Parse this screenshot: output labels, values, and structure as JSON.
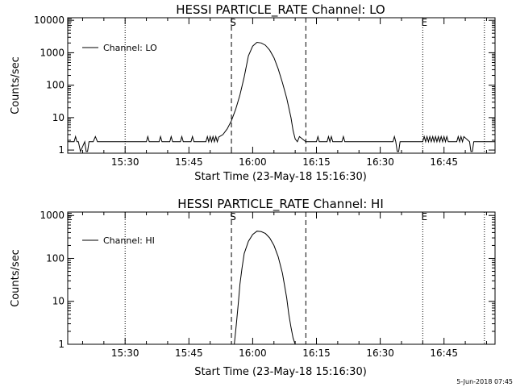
{
  "footer": {
    "timestamp": "5-Jun-2018 07:45"
  },
  "chart_data": [
    {
      "type": "line",
      "title": "HESSI PARTICLE_RATE Channel: LO",
      "xlabel": "Start Time (23-May-18 15:16:30)",
      "ylabel": "Counts/sec",
      "yscale": "log",
      "ylim": [
        0.8,
        12000
      ],
      "xlim": [
        "15:16:30",
        "16:57:00"
      ],
      "x_ticks": [
        "15:30",
        "15:45",
        "16:00",
        "16:15",
        "16:30",
        "16:45"
      ],
      "y_ticks": [
        "1",
        "10",
        "100",
        "1000",
        "10000"
      ],
      "grid": false,
      "legend": {
        "position": "top-left",
        "entries": [
          "Channel: LO"
        ]
      },
      "markers": [
        {
          "label": "E",
          "time": "15:16:30",
          "style": "dotted"
        },
        {
          "label": "",
          "time": "15:30:00",
          "style": "dotted"
        },
        {
          "label": "S",
          "time": "15:55:00",
          "style": "dashed"
        },
        {
          "label": "",
          "time": "16:12:30",
          "style": "dashed"
        },
        {
          "label": "E",
          "time": "16:40:00",
          "style": "dotted"
        },
        {
          "label": "",
          "time": "16:54:30",
          "style": "dotted"
        }
      ],
      "series": [
        {
          "name": "Channel: LO",
          "x": [
            "15:16:30",
            "15:18:00",
            "15:18:20",
            "15:18:40",
            "15:19:00",
            "15:19:30",
            "15:20:30",
            "15:20:50",
            "15:21:10",
            "15:21:30",
            "15:22:30",
            "15:23:00",
            "15:23:30",
            "15:24:00",
            "15:30:00",
            "15:35:00",
            "15:35:20",
            "15:35:40",
            "15:38:00",
            "15:38:20",
            "15:38:40",
            "15:40:30",
            "15:40:50",
            "15:41:10",
            "15:43:00",
            "15:43:20",
            "15:43:40",
            "15:45:30",
            "15:45:50",
            "15:46:10",
            "15:49:00",
            "15:49:20",
            "15:49:40",
            "15:50:00",
            "15:50:20",
            "15:50:40",
            "15:51:00",
            "15:51:20",
            "15:51:40",
            "15:52:00",
            "15:53:00",
            "15:54:00",
            "15:55:00",
            "15:56:00",
            "15:57:00",
            "15:58:00",
            "15:59:00",
            "16:00:00",
            "16:01:00",
            "16:02:00",
            "16:03:00",
            "16:04:00",
            "16:05:00",
            "16:06:00",
            "16:07:00",
            "16:08:00",
            "16:09:00",
            "16:09:30",
            "16:10:00",
            "16:10:30",
            "16:11:00",
            "16:12:30",
            "16:15:00",
            "16:15:20",
            "16:15:40",
            "16:17:30",
            "16:17:50",
            "16:18:10",
            "16:18:30",
            "16:18:50",
            "16:19:10",
            "16:21:00",
            "16:21:20",
            "16:21:40",
            "16:33:00",
            "16:33:20",
            "16:33:40",
            "16:34:00",
            "16:34:20",
            "16:34:40",
            "16:35:00",
            "16:40:00",
            "16:40:20",
            "16:40:40",
            "16:41:00",
            "16:41:20",
            "16:41:40",
            "16:42:00",
            "16:42:20",
            "16:42:40",
            "16:43:00",
            "16:43:20",
            "16:43:40",
            "16:44:00",
            "16:44:20",
            "16:44:40",
            "16:45:00",
            "16:45:20",
            "16:45:40",
            "16:46:00",
            "16:47:00",
            "16:48:00",
            "16:48:20",
            "16:48:40",
            "16:49:00",
            "16:49:20",
            "16:49:40",
            "16:51:00",
            "16:51:20",
            "16:51:40",
            "16:52:00",
            "16:55:00",
            "16:57:00"
          ],
          "y": [
            1.8,
            1.8,
            2.6,
            1.8,
            1.8,
            0.9,
            1.8,
            0.9,
            0.9,
            1.8,
            1.8,
            2.6,
            1.8,
            1.8,
            1.8,
            1.8,
            2.6,
            1.8,
            1.8,
            2.6,
            1.8,
            1.8,
            2.6,
            1.8,
            1.8,
            2.6,
            1.8,
            1.8,
            2.6,
            1.8,
            1.8,
            2.6,
            1.8,
            2.6,
            1.8,
            2.6,
            1.8,
            2.6,
            1.8,
            2.5,
            3,
            4.5,
            8,
            18,
            50,
            180,
            800,
            1600,
            2100,
            2000,
            1700,
            1200,
            700,
            320,
            120,
            40,
            10,
            4,
            2.2,
            1.8,
            2.6,
            1.8,
            1.8,
            2.6,
            1.8,
            1.8,
            2.6,
            1.8,
            2.6,
            1.8,
            1.8,
            1.8,
            2.6,
            1.8,
            1.8,
            2.6,
            1.8,
            0.9,
            0.9,
            1.8,
            1.8,
            1.8,
            2.6,
            1.8,
            2.6,
            1.8,
            2.6,
            1.8,
            2.6,
            1.8,
            2.6,
            1.8,
            2.6,
            1.8,
            2.6,
            1.8,
            2.6,
            1.8,
            2.6,
            1.8,
            1.8,
            1.8,
            2.6,
            1.8,
            2.6,
            1.8,
            2.6,
            1.8,
            0.9,
            0.9,
            1.8,
            1.8,
            1.8
          ]
        }
      ]
    },
    {
      "type": "line",
      "title": "HESSI PARTICLE_RATE Channel: HI",
      "xlabel": "Start Time (23-May-18 15:16:30)",
      "ylabel": "Counts/sec",
      "yscale": "log",
      "ylim": [
        1,
        1200
      ],
      "xlim": [
        "15:16:30",
        "16:57:00"
      ],
      "x_ticks": [
        "15:30",
        "15:45",
        "16:00",
        "16:15",
        "16:30",
        "16:45"
      ],
      "y_ticks": [
        "1",
        "10",
        "100",
        "1000"
      ],
      "grid": false,
      "legend": {
        "position": "top-left",
        "entries": [
          "Channel: HI"
        ]
      },
      "markers": [
        {
          "label": "E",
          "time": "15:16:30",
          "style": "dotted"
        },
        {
          "label": "",
          "time": "15:30:00",
          "style": "dotted"
        },
        {
          "label": "S",
          "time": "15:55:00",
          "style": "dashed"
        },
        {
          "label": "",
          "time": "16:12:30",
          "style": "dashed"
        },
        {
          "label": "E",
          "time": "16:40:00",
          "style": "dotted"
        },
        {
          "label": "",
          "time": "16:54:30",
          "style": "dotted"
        }
      ],
      "series": [
        {
          "name": "Channel: HI",
          "x": [
            "15:55:40",
            "15:56:10",
            "15:56:40",
            "15:57:00",
            "15:57:30",
            "15:58:00",
            "15:59:00",
            "16:00:00",
            "16:01:00",
            "16:02:00",
            "16:03:00",
            "16:04:00",
            "16:05:00",
            "16:06:00",
            "16:07:00",
            "16:08:00",
            "16:08:30",
            "16:09:00",
            "16:09:30",
            "16:10:00"
          ],
          "y": [
            1,
            3,
            10,
            25,
            60,
            130,
            250,
            360,
            430,
            420,
            380,
            300,
            200,
            110,
            45,
            12,
            5,
            2.5,
            1.4,
            1
          ]
        }
      ]
    }
  ]
}
